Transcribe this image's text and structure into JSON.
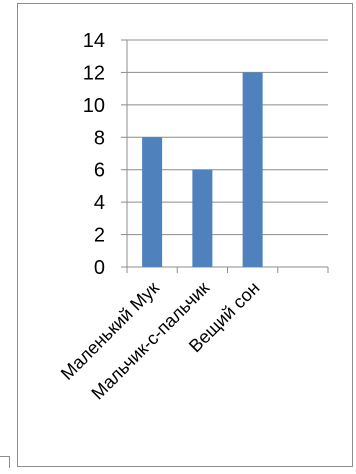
{
  "chart_data": {
    "type": "bar",
    "categories": [
      "Маленький Мук",
      "Мальчик-с-пальчик",
      "Вещий сон",
      ""
    ],
    "values": [
      8,
      6,
      12,
      null
    ],
    "title": "",
    "xlabel": "",
    "ylabel": "",
    "ylim": [
      0,
      14
    ],
    "yticks": [
      0,
      2,
      4,
      6,
      8,
      10,
      12,
      14
    ],
    "grid": true,
    "legend": "none",
    "bar_color": "#4f81bd",
    "gridline_color": "#8c8c8c",
    "axis_color": "#8c8c8c"
  }
}
